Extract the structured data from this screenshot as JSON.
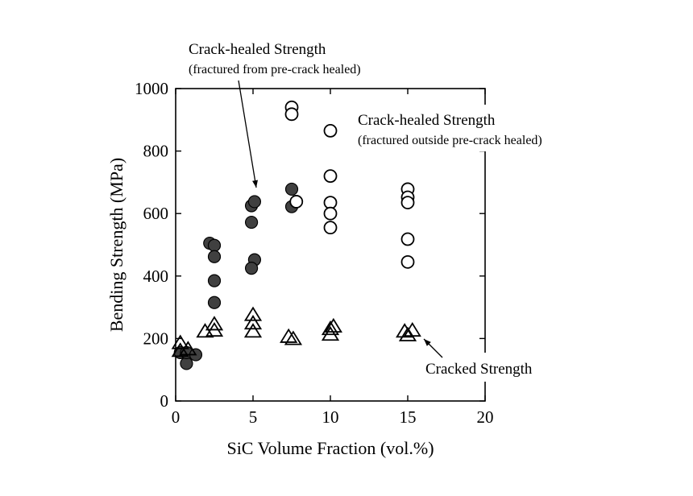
{
  "chart_data": {
    "type": "scatter",
    "title": "",
    "xlabel": "SiC Volume Fraction (vol.%)",
    "ylabel": "Bending Strength (MPa)",
    "xlim": [
      0,
      20
    ],
    "ylim": [
      0,
      1000
    ],
    "xticks": [
      0,
      5,
      10,
      15,
      20
    ],
    "yticks": [
      0,
      200,
      400,
      600,
      800,
      1000
    ],
    "grid": false,
    "series": [
      {
        "name": "Crack-healed Strength (fractured from pre-crack healed)",
        "marker": "filled-circle",
        "color": "#404040",
        "points": [
          [
            0.3,
            155
          ],
          [
            0.7,
            120
          ],
          [
            0.7,
            155
          ],
          [
            1.3,
            148
          ],
          [
            2.2,
            505
          ],
          [
            2.5,
            498
          ],
          [
            2.5,
            462
          ],
          [
            2.5,
            385
          ],
          [
            2.5,
            315
          ],
          [
            4.9,
            625
          ],
          [
            5.1,
            638
          ],
          [
            4.9,
            572
          ],
          [
            5.1,
            452
          ],
          [
            4.9,
            425
          ],
          [
            7.5,
            678
          ],
          [
            7.5,
            622
          ]
        ]
      },
      {
        "name": "Crack-healed Strength (fractured outside pre-crack healed)",
        "marker": "open-circle",
        "color": "#000000",
        "points": [
          [
            7.5,
            940
          ],
          [
            7.5,
            918
          ],
          [
            7.8,
            638
          ],
          [
            10.0,
            865
          ],
          [
            10.0,
            720
          ],
          [
            10.0,
            635
          ],
          [
            10.0,
            600
          ],
          [
            10.0,
            555
          ],
          [
            15.0,
            678
          ],
          [
            15.0,
            652
          ],
          [
            15.0,
            635
          ],
          [
            15.0,
            518
          ],
          [
            15.0,
            445
          ]
        ]
      },
      {
        "name": "Cracked Strength",
        "marker": "open-triangle",
        "color": "#000000",
        "points": [
          [
            0.3,
            185
          ],
          [
            0.3,
            160
          ],
          [
            0.8,
            165
          ],
          [
            1.9,
            222
          ],
          [
            2.5,
            245
          ],
          [
            2.5,
            225
          ],
          [
            5.0,
            275
          ],
          [
            5.0,
            248
          ],
          [
            5.0,
            222
          ],
          [
            7.3,
            205
          ],
          [
            7.6,
            198
          ],
          [
            10.0,
            230
          ],
          [
            10.0,
            212
          ],
          [
            10.2,
            238
          ],
          [
            14.8,
            222
          ],
          [
            15.0,
            210
          ],
          [
            15.3,
            225
          ]
        ]
      }
    ],
    "annotations": [
      {
        "line1": "Crack-healed Strength",
        "line2": "(fractured from pre-crack healed)"
      },
      {
        "line1": "Crack-healed Strength",
        "line2": "(fractured outside pre-crack healed)"
      },
      {
        "line1": "Cracked Strength"
      }
    ]
  }
}
